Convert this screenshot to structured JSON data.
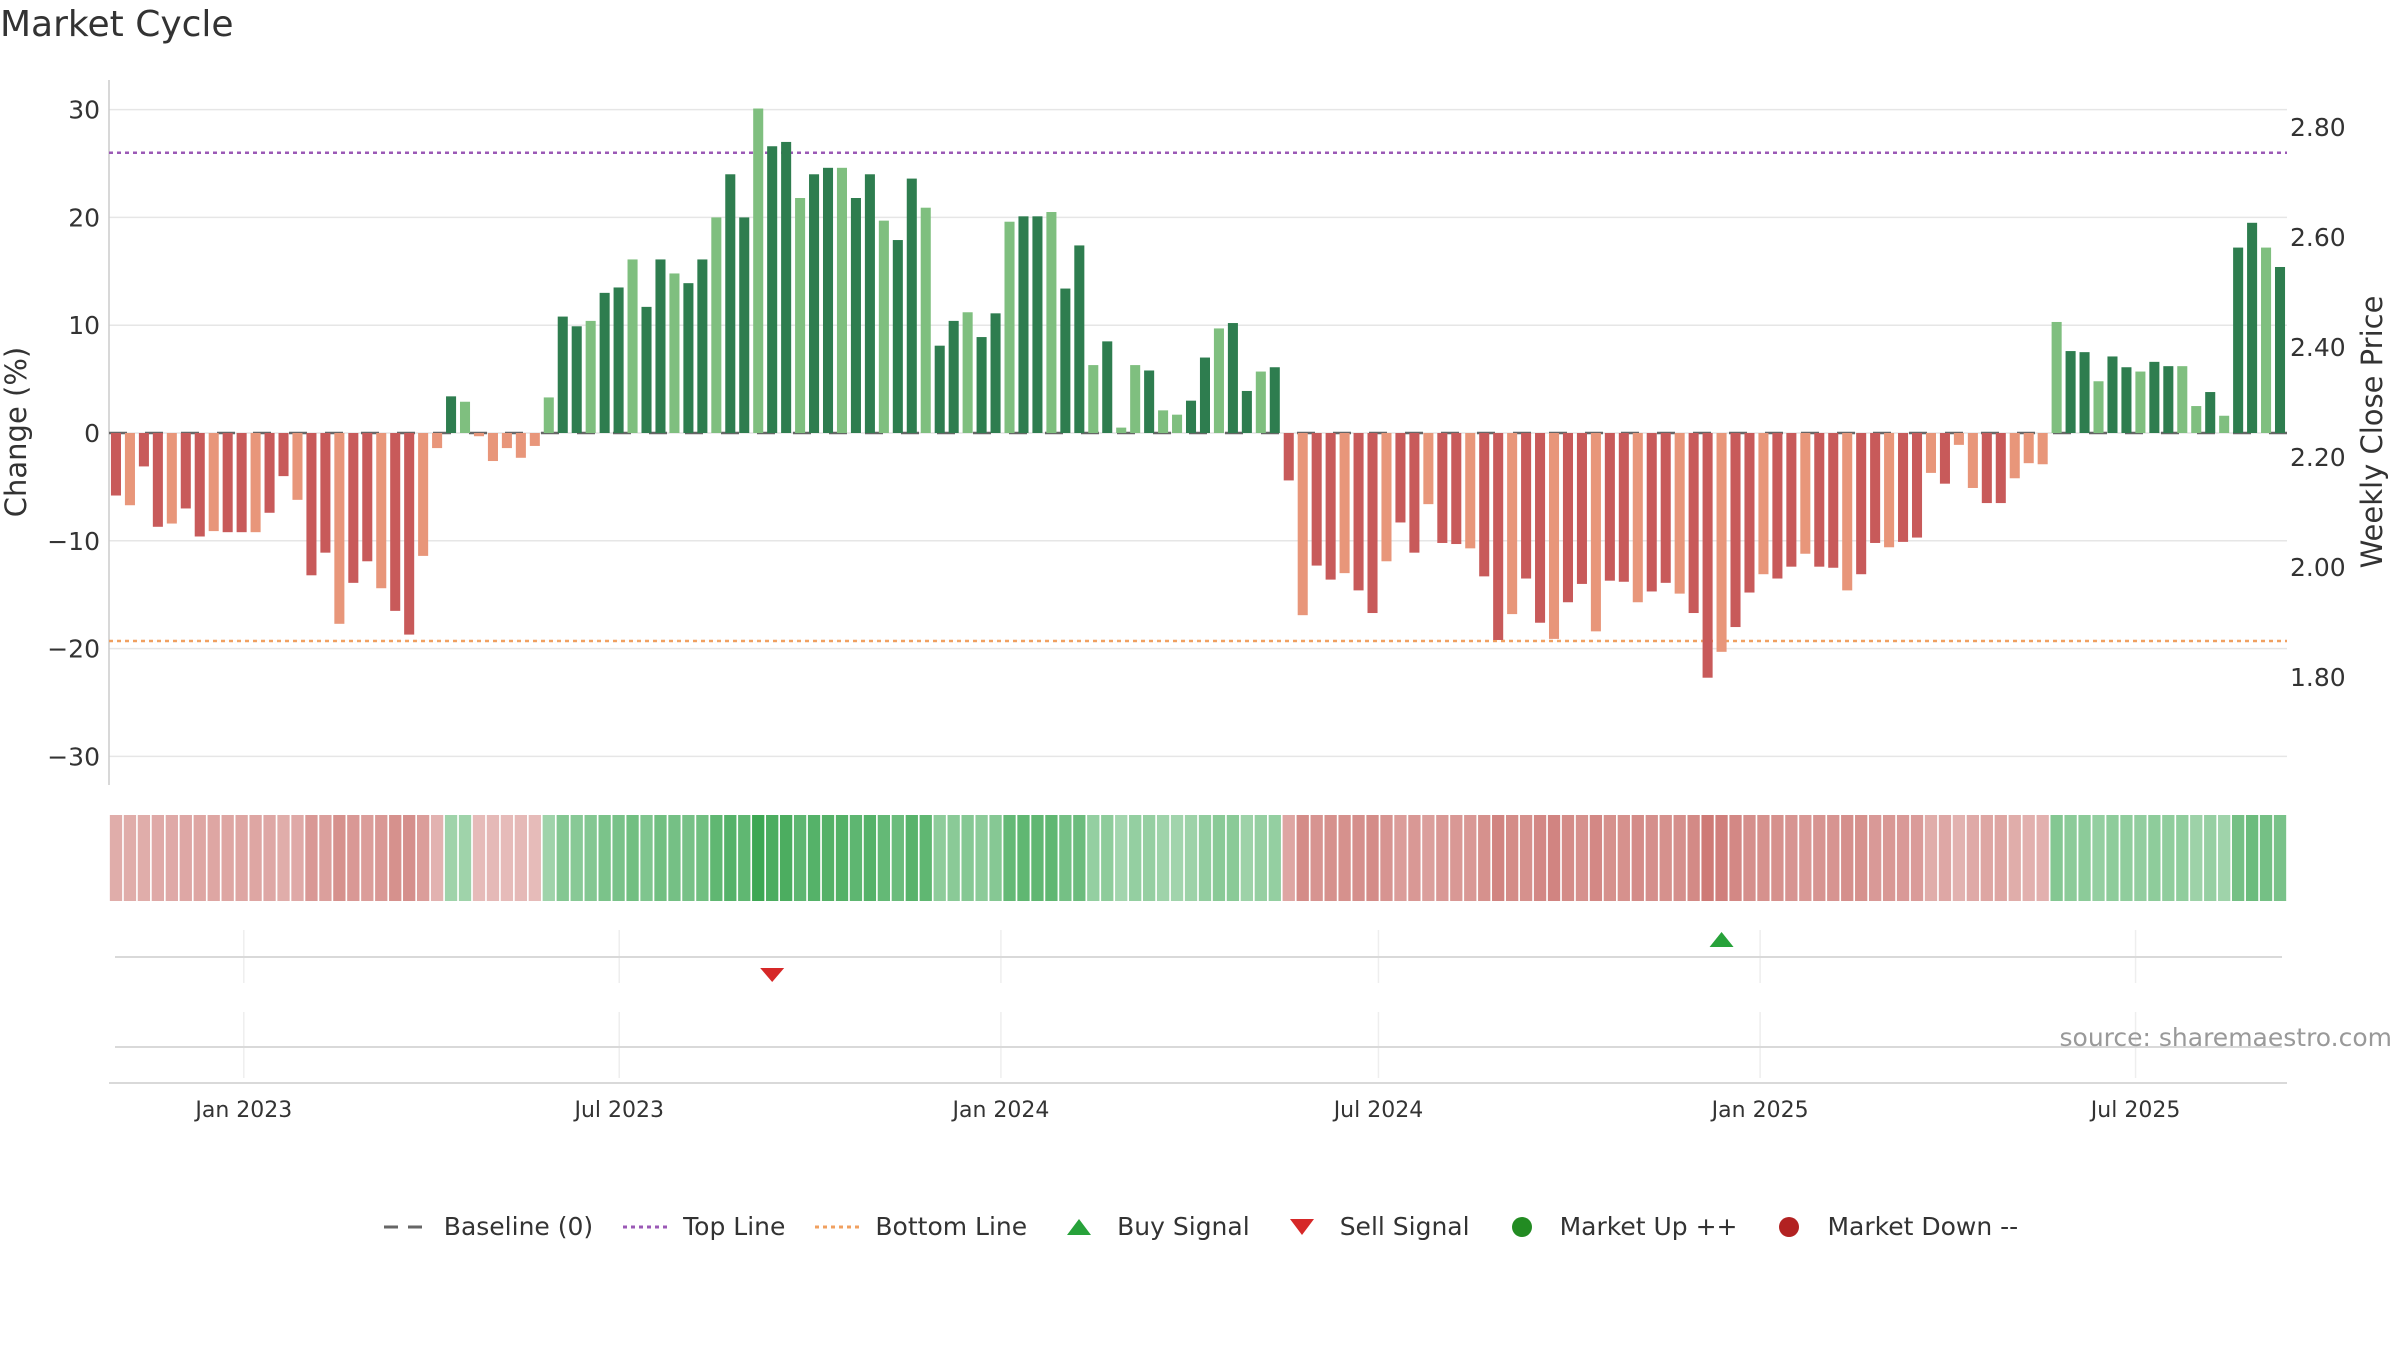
{
  "title": "Market Cycle",
  "source": "source: sharemaestro.com",
  "colors": {
    "up_strong": "#2e7d4f",
    "up_light": "#7fbf7f",
    "down_strong": "#c85a5a",
    "down_light": "#e8967a",
    "top_line": "#9b59b6",
    "bottom_line": "#f0a060",
    "baseline": "#666666",
    "buy": "#27a23a",
    "sell": "#d62828",
    "market_up": "#228b22",
    "market_down": "#b22222"
  },
  "legend": [
    {
      "label": "Baseline (0)",
      "symbol": "dash",
      "color": "#666666"
    },
    {
      "label": "Top Line",
      "symbol": "dot",
      "color": "#9b59b6"
    },
    {
      "label": "Bottom Line",
      "symbol": "dot",
      "color": "#f0a060"
    },
    {
      "label": "Buy Signal",
      "symbol": "tri-up",
      "color": "#27a23a"
    },
    {
      "label": "Sell Signal",
      "symbol": "tri-down",
      "color": "#d62828"
    },
    {
      "label": "Market Up ++",
      "symbol": "circle",
      "color": "#228b22"
    },
    {
      "label": "Market Down --",
      "symbol": "circle",
      "color": "#b22222"
    }
  ],
  "chart_data": {
    "type": "bar",
    "title": "Market Cycle",
    "ylabel": "Change (%)",
    "y2label": "Weekly Close Price",
    "ylim": [
      -32.5,
      32.5
    ],
    "y2lim": [
      1.62,
      2.86
    ],
    "yticks": [
      30,
      20,
      10,
      0,
      -10,
      -20,
      -30
    ],
    "ytick_labels": [
      "30",
      "20",
      "10",
      "0",
      "−10",
      "−20",
      "−30"
    ],
    "y2ticks": [
      2.8,
      2.6,
      2.4,
      2.2,
      2.0,
      1.8
    ],
    "y2tick_labels": [
      "2.80",
      "2.60",
      "2.40",
      "2.20",
      "2.00",
      "1.80"
    ],
    "x_start": "2022-10-28",
    "x_end": "2025-09-12",
    "frequency": "weekly",
    "xticks": [
      "2023-01-01",
      "2023-07-01",
      "2024-01-01",
      "2024-07-01",
      "2025-01-01",
      "2025-07-01"
    ],
    "xtick_labels": [
      "Jan 2023",
      "Jul 2023",
      "Jan 2024",
      "Jul 2024",
      "Jan 2025",
      "Jul 2025"
    ],
    "top_line": 26,
    "bottom_line": -19.3,
    "baseline": 0,
    "values": [
      -5.8,
      -6.7,
      -3.1,
      -8.7,
      -8.4,
      -7.0,
      -9.6,
      -9.1,
      -9.2,
      -9.2,
      -9.2,
      -7.4,
      -4.0,
      -6.2,
      -13.2,
      -11.1,
      -17.7,
      -13.9,
      -11.9,
      -14.4,
      -16.5,
      -18.7,
      -11.4,
      -1.4,
      3.4,
      2.9,
      -0.3,
      -2.6,
      -1.4,
      -2.3,
      -1.2,
      3.3,
      10.8,
      9.9,
      10.4,
      13.0,
      13.5,
      16.1,
      11.7,
      16.1,
      14.8,
      13.9,
      16.1,
      20.0,
      24.0,
      20.0,
      30.1,
      26.6,
      27.0,
      21.8,
      24.0,
      24.6,
      24.6,
      21.8,
      24.0,
      19.7,
      17.9,
      23.6,
      20.9,
      8.1,
      10.4,
      11.2,
      8.9,
      11.1,
      19.6,
      20.1,
      20.1,
      20.5,
      13.4,
      17.4,
      6.3,
      8.5,
      0.5,
      6.3,
      5.8,
      2.1,
      1.7,
      3.0,
      7.0,
      9.7,
      10.2,
      3.9,
      5.7,
      6.1,
      -4.4,
      -16.9,
      -12.3,
      -13.6,
      -13.0,
      -14.6,
      -16.7,
      -11.9,
      -8.3,
      -11.1,
      -6.6,
      -10.2,
      -10.3,
      -10.7,
      -13.3,
      -19.2,
      -16.8,
      -13.5,
      -17.6,
      -19.1,
      -15.7,
      -14.0,
      -18.4,
      -13.7,
      -13.8,
      -15.7,
      -14.7,
      -13.9,
      -14.9,
      -16.7,
      -22.7,
      -20.3,
      -18.0,
      -14.8,
      -13.1,
      -13.5,
      -12.4,
      -11.2,
      -12.4,
      -12.5,
      -14.6,
      -13.1,
      -10.2,
      -10.6,
      -10.1,
      -9.7,
      -3.7,
      -4.7,
      -1.1,
      -5.1,
      -6.5,
      -6.5,
      -4.2,
      -2.8,
      -2.9,
      10.3,
      7.6,
      7.5,
      4.8,
      7.1,
      6.1,
      5.7,
      6.6,
      6.2,
      6.2,
      2.5,
      3.8,
      1.6,
      17.2,
      19.5,
      17.2,
      15.4
    ],
    "shade": [
      0.3,
      0.3,
      0.3,
      0.32,
      0.32,
      0.33,
      0.35,
      0.35,
      0.35,
      0.35,
      0.35,
      0.33,
      0.3,
      0.32,
      0.45,
      0.4,
      0.5,
      0.45,
      0.42,
      0.46,
      0.5,
      0.52,
      0.42,
      0.25,
      0.28,
      0.28,
      0.18,
      0.2,
      0.18,
      0.2,
      0.18,
      0.28,
      0.45,
      0.43,
      0.45,
      0.5,
      0.52,
      0.58,
      0.48,
      0.58,
      0.55,
      0.53,
      0.58,
      0.68,
      0.75,
      0.68,
      0.9,
      0.82,
      0.82,
      0.7,
      0.75,
      0.76,
      0.76,
      0.7,
      0.75,
      0.66,
      0.62,
      0.74,
      0.68,
      0.38,
      0.42,
      0.44,
      0.4,
      0.44,
      0.66,
      0.68,
      0.68,
      0.68,
      0.55,
      0.6,
      0.35,
      0.38,
      0.25,
      0.35,
      0.33,
      0.28,
      0.27,
      0.3,
      0.36,
      0.42,
      0.42,
      0.3,
      0.33,
      0.34,
      0.35,
      0.55,
      0.48,
      0.5,
      0.5,
      0.52,
      0.55,
      0.48,
      0.42,
      0.46,
      0.4,
      0.45,
      0.45,
      0.46,
      0.5,
      0.6,
      0.55,
      0.5,
      0.57,
      0.6,
      0.54,
      0.5,
      0.58,
      0.5,
      0.5,
      0.54,
      0.52,
      0.5,
      0.52,
      0.56,
      0.68,
      0.64,
      0.58,
      0.52,
      0.5,
      0.5,
      0.48,
      0.46,
      0.48,
      0.48,
      0.52,
      0.5,
      0.44,
      0.45,
      0.44,
      0.43,
      0.3,
      0.33,
      0.25,
      0.32,
      0.35,
      0.35,
      0.3,
      0.27,
      0.27,
      0.45,
      0.4,
      0.4,
      0.35,
      0.39,
      0.37,
      0.36,
      0.38,
      0.37,
      0.37,
      0.3,
      0.33,
      0.28,
      0.55,
      0.6,
      0.55,
      0.52
    ],
    "buy_signals": [
      115
    ],
    "sell_signals": [
      47
    ]
  }
}
